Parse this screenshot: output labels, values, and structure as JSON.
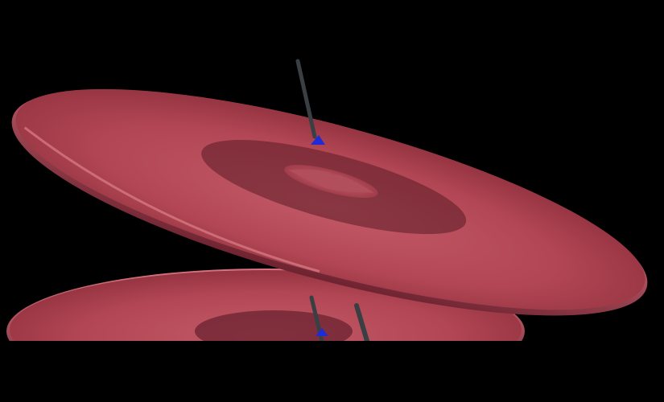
{
  "scene": {
    "background_color": "#000000",
    "cymbal_color": "#b84a58",
    "cymbal_shadow_color": "#5a1c26",
    "cymbal_highlight_color": "#d9737f",
    "stand_rod_color": "#3a3f44",
    "stand_tip_color": "#1f2bd6",
    "objects": [
      "upper-cymbal",
      "lower-cymbal",
      "cymbal-stand"
    ]
  }
}
